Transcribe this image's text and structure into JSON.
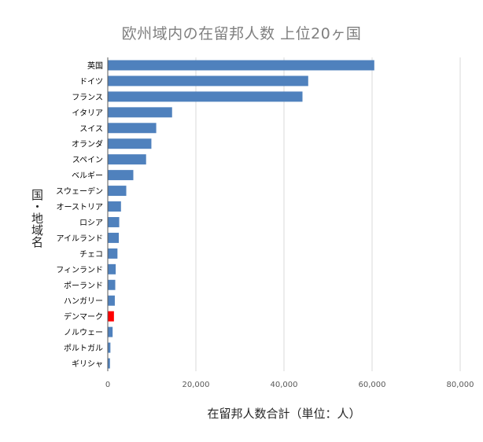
{
  "chart_data": {
    "type": "bar",
    "orientation": "horizontal",
    "title": "欧州域内の在留邦人数 上位20ヶ国",
    "xlabel": "在留邦人数合計（単位：人）",
    "ylabel": "国・地域名",
    "categories": [
      "英国",
      "ドイツ",
      "フランス",
      "イタリア",
      "スイス",
      "オランダ",
      "スペイン",
      "ベルギー",
      "スウェーデン",
      "オーストリア",
      "ロシア",
      "アイルランド",
      "チェコ",
      "フィンランド",
      "ポーランド",
      "ハンガリー",
      "デンマーク",
      "ノルウェー",
      "ポルトガル",
      "ギリシャ"
    ],
    "values": [
      60500,
      45500,
      44200,
      14600,
      11000,
      9900,
      8700,
      5800,
      4200,
      3000,
      2600,
      2500,
      2200,
      1800,
      1700,
      1600,
      1400,
      1100,
      600,
      500
    ],
    "xlim": [
      0,
      80000
    ],
    "xticks": [
      "0",
      "20,000",
      "40,000",
      "60,000",
      "80,000"
    ],
    "xtick_values": [
      0,
      20000,
      40000,
      60000,
      80000
    ],
    "grid": true,
    "colors": {
      "bar": "#4f81bd",
      "highlight": "#ff0000",
      "grid": "#d9d9d9",
      "axis": "#595959"
    },
    "highlight_category": "デンマーク"
  }
}
